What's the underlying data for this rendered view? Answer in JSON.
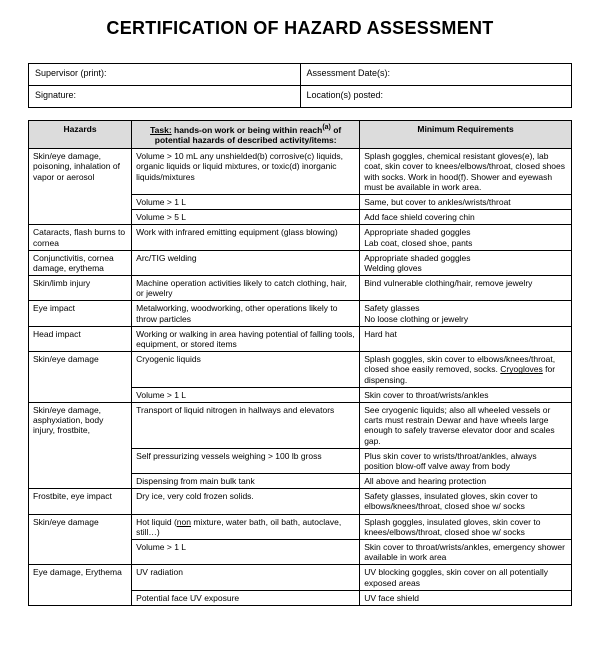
{
  "title": "CERTIFICATION OF HAZARD ASSESSMENT",
  "info": {
    "supervisor_label": "Supervisor (print):",
    "date_label": "Assessment Date(s):",
    "signature_label": "Signature:",
    "location_label": "Location(s) posted:"
  },
  "headers": {
    "hazards": "Hazards",
    "task_prefix": "Task:",
    "task_text": " hands-on work or being within reach",
    "task_suffix": " of potential hazards of described activity/items:",
    "minreq": "Minimum Requirements"
  },
  "rows": [
    {
      "h": "Skin/eye damage, poisoning, inhalation of vapor or aerosol",
      "t": "Volume > 10 mL any unshielded(b) corrosive(c) liquids, organic liquids or liquid mixtures, or toxic(d) inorganic liquids/mixtures",
      "r": "Splash goggles, chemical resistant gloves(e), lab coat, skin cover to knees/elbows/throat, closed shoes with socks.  Work in hood(f). Shower and eyewash must be available in work area.",
      "hrows": 3
    },
    {
      "t": "Volume > 1 L",
      "r": "Same, but cover to ankles/wrists/throat"
    },
    {
      "t": "Volume > 5 L",
      "r": "Add face shield covering chin"
    },
    {
      "h": "Cataracts, flash burns to cornea",
      "t": "Work with infrared emitting equipment (glass blowing)",
      "r": "Appropriate shaded goggles\nLab coat, closed shoe, pants"
    },
    {
      "h": "Conjunctivitis, cornea damage, erythema",
      "t": "Arc/TIG welding",
      "r": "Appropriate shaded goggles\nWelding gloves"
    },
    {
      "h": "Skin/limb injury",
      "t": "Machine operation activities likely to catch clothing, hair, or jewelry",
      "r": "Bind vulnerable clothing/hair, remove jewelry"
    },
    {
      "h": "Eye impact",
      "t": "Metalworking, woodworking, other operations likely to throw particles",
      "r": "Safety glasses\nNo loose clothing or jewelry"
    },
    {
      "h": "Head impact",
      "t": "Working or walking in area having potential of falling tools, equipment, or stored items",
      "r": "Hard hat"
    },
    {
      "h": "Skin/eye damage",
      "t": "Cryogenic liquids",
      "r": "Splash goggles, skin cover to elbows/knees/throat, closed shoe easily removed, socks.  Cryogloves for dispensing.",
      "hrows": 2,
      "cryo": true
    },
    {
      "t": "Volume > 1 L",
      "r": "Skin cover to throat/wrists/ankles"
    },
    {
      "h": "Skin/eye damage, asphyxiation, body injury, frostbite,",
      "t": "Transport of liquid nitrogen in hallways and elevators",
      "r": "See cryogenic liquids; also all wheeled vessels or carts must restrain Dewar and have wheels large enough to safely traverse elevator door and scales gap.",
      "hrows": 3
    },
    {
      "t": "Self pressurizing vessels weighing > 100 lb gross",
      "r": "Plus skin cover to wrists/throat/ankles, always position blow-off valve away from body"
    },
    {
      "t": "Dispensing from main bulk tank",
      "r": "All above and hearing protection"
    },
    {
      "h": "Frostbite, eye impact",
      "t": "Dry ice, very cold frozen solids.",
      "r": "Safety glasses, insulated gloves, skin cover to elbows/knees/throat, closed shoe w/ socks"
    },
    {
      "h": "Skin/eye damage",
      "t": "Hot liquid (non mixture, water bath, oil bath, autoclave, still…)",
      "r": "Splash goggles, insulated gloves, skin cover to knees/elbows/throat, closed shoe w/ socks",
      "hrows": 2,
      "non": true
    },
    {
      "t": "Volume > 1 L",
      "r": "Skin cover to throat/wrists/ankles, emergency shower available in work area"
    },
    {
      "h": "Eye damage, Erythema",
      "t": "UV radiation",
      "r": "UV blocking goggles, skin cover on all potentially exposed areas",
      "hrows": 2
    },
    {
      "t": "Potential face UV exposure",
      "r": "UV face shield"
    }
  ]
}
